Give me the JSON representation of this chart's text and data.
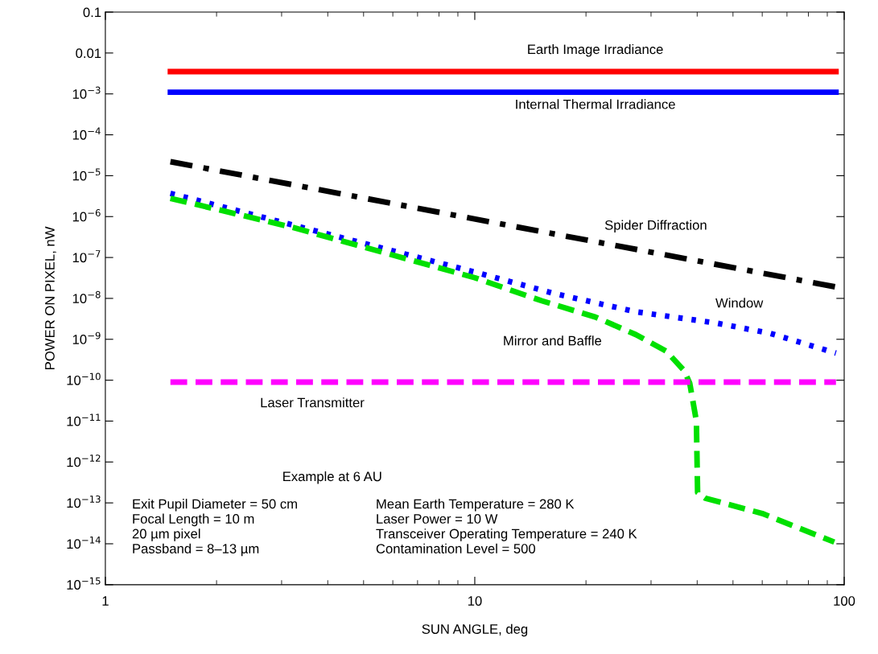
{
  "chart_data": {
    "type": "line",
    "xlabel": "SUN ANGLE, deg",
    "ylabel": "POWER ON PIXEL, nW",
    "log": "xy",
    "grid": false,
    "marker": "none",
    "xlim": [
      1,
      100
    ],
    "xticks": [
      1,
      10,
      100
    ],
    "ylim": [
      1e-15,
      0.1
    ],
    "yticks": [
      0.1,
      0.01,
      {
        "value": 0.001,
        "label": "10$^{−3}$"
      },
      {
        "value": 0.0001,
        "label": "10$^{−4}$"
      },
      {
        "value": 1e-05,
        "label": "10$^{−5}$"
      },
      {
        "value": 1e-06,
        "label": "10$^{−6}$"
      },
      {
        "value": 1e-07,
        "label": "10$^{−7}$"
      },
      {
        "value": 1e-08,
        "label": "10$^{−8}$"
      },
      {
        "value": 1e-09,
        "label": "10$^{−9}$"
      },
      {
        "value": 1e-10,
        "label": "10$^{−10}$"
      },
      {
        "value": 1e-11,
        "label": "10$^{−11}$"
      },
      {
        "value": 1e-12,
        "label": "10$^{−12}$"
      },
      {
        "value": 1e-13,
        "label": "10$^{−13}$"
      },
      {
        "value": 1e-14,
        "label": "10$^{−14}$"
      },
      {
        "value": 1e-15,
        "label": "10$^{−15}$"
      }
    ],
    "series": [
      {
        "name": "Earth Image Irradiance",
        "color": "#ff0000",
        "line_style": "solid",
        "x": [
          1.5,
          95
        ],
        "values": [
          0.0035,
          0.0035
        ]
      },
      {
        "name": "Internal Thermal Irradiance",
        "color": "#0000ff",
        "line_style": "solid",
        "x": [
          1.5,
          95
        ],
        "values": [
          0.0011,
          0.0011
        ]
      },
      {
        "name": "Spider Diffraction",
        "color": "#000000",
        "line_style": "dashdot",
        "x": [
          1.5,
          95
        ],
        "values": [
          2.2e-05,
          1.9e-08
        ]
      },
      {
        "name": "Window",
        "color": "#0000ff",
        "line_style": "dotted",
        "x": [
          1.5,
          10,
          16.5,
          27.3,
          45,
          63,
          95
        ],
        "values": [
          3.7e-06,
          4.4e-08,
          1.3e-08,
          4.7e-09,
          2.5e-09,
          1.4e-09,
          4.6e-10
        ]
      },
      {
        "name": "Mirror and Baffle",
        "color": "#00e000",
        "line_style": "dashed",
        "x": [
          1.5,
          3.2,
          10,
          15.2,
          21.2,
          27.3,
          33,
          36.9,
          38.2,
          39.8,
          40.1,
          42.1,
          60,
          94
        ],
        "values": [
          2.8e-06,
          5.5e-07,
          3.2e-08,
          8.7e-09,
          3.5e-09,
          1.3e-09,
          5.1e-10,
          1.7e-10,
          8.3e-11,
          1e-11,
          1.8e-13,
          1.3e-13,
          5.5e-14,
          1.1e-14
        ]
      },
      {
        "name": "Laser Transmitter",
        "color": "#ff00ff",
        "line_style": "dashed",
        "x": [
          1.5,
          95
        ],
        "values": [
          9e-11,
          9e-11
        ]
      }
    ],
    "annotations": [
      "Example at 6 AU",
      "Exit Pupil Diameter = 50 cm\nFocal Length = 10 m\n20 µm pixel\nPassband = 8–13 µm",
      "Mean Earth Temperature = 280 K\nLaser Power = 10 W\nTransceiver Operating Temperature = 240 K\nContamination Level = 500"
    ]
  }
}
